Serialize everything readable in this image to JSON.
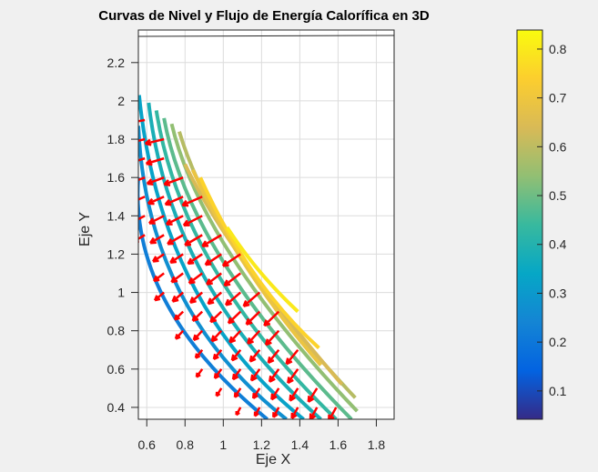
{
  "chart_data": {
    "type": "contour+quiver",
    "title": "Curvas de Nivel y Flujo de Energía Calorífica en 3D",
    "xlabel": "Eje X",
    "ylabel": "Eje Y",
    "xlim": [
      0.556,
      1.893
    ],
    "ylim": [
      0.338,
      2.37
    ],
    "grid": true,
    "xticks": [
      "0.6",
      "0.8",
      "1",
      "1.2",
      "1.4",
      "1.6",
      "1.8"
    ],
    "xtick_values": [
      0.6,
      0.8,
      1.0,
      1.2,
      1.4,
      1.6,
      1.8
    ],
    "yticks": [
      "0.4",
      "0.6",
      "0.8",
      "1",
      "1.2",
      "1.4",
      "1.6",
      "1.8",
      "2",
      "2.2"
    ],
    "ytick_values": [
      0.4,
      0.6,
      0.8,
      1.0,
      1.2,
      1.4,
      1.6,
      1.8,
      2.0,
      2.2
    ],
    "contours": [
      {
        "level": 0.22,
        "start": [
          0.556,
          1.6
        ],
        "mid": [
          0.7,
          0.95
        ],
        "end": [
          1.23,
          0.338
        ]
      },
      {
        "level": 0.27,
        "start": [
          0.556,
          1.87
        ],
        "mid": [
          0.77,
          1.01
        ],
        "end": [
          1.33,
          0.338
        ]
      },
      {
        "level": 0.33,
        "start": [
          0.56,
          2.03
        ],
        "mid": [
          0.83,
          1.06
        ],
        "end": [
          1.42,
          0.338
        ]
      },
      {
        "level": 0.38,
        "start": [
          0.61,
          1.99
        ],
        "mid": [
          0.89,
          1.1
        ],
        "end": [
          1.51,
          0.338
        ]
      },
      {
        "level": 0.43,
        "start": [
          0.65,
          1.95
        ],
        "mid": [
          0.95,
          1.13
        ],
        "end": [
          1.59,
          0.338
        ]
      },
      {
        "level": 0.48,
        "start": [
          0.69,
          1.91
        ],
        "mid": [
          1.0,
          1.16
        ],
        "end": [
          1.67,
          0.338
        ]
      },
      {
        "level": 0.54,
        "start": [
          0.73,
          1.88
        ],
        "mid": [
          1.05,
          1.18
        ],
        "end": [
          1.7,
          0.38
        ]
      },
      {
        "level": 0.59,
        "start": [
          0.77,
          1.84
        ],
        "mid": [
          1.09,
          1.19
        ],
        "end": [
          1.69,
          0.45
        ]
      },
      {
        "level": 0.64,
        "start": [
          0.8,
          1.67
        ],
        "mid": [
          1.11,
          1.16
        ],
        "end": [
          1.62,
          0.52
        ]
      },
      {
        "level": 0.69,
        "start": [
          0.84,
          1.64
        ],
        "mid": [
          1.13,
          1.12
        ],
        "end": [
          1.51,
          0.62
        ]
      },
      {
        "level": 0.75,
        "start": [
          0.88,
          1.6
        ],
        "mid": [
          1.16,
          1.1
        ],
        "end": [
          1.5,
          0.71
        ]
      },
      {
        "level": 0.8,
        "start": [
          1.02,
          1.34
        ],
        "mid": [
          1.19,
          1.11
        ],
        "end": [
          1.39,
          0.9
        ]
      }
    ],
    "quiver": {
      "color": "#ff0000",
      "x_start": 0.59,
      "x_step": 0.1,
      "rows": [
        {
          "y": 1.9,
          "cols": [
            0,
            0
          ]
        },
        {
          "y": 1.8,
          "cols": [
            0,
            1
          ]
        },
        {
          "y": 1.7,
          "cols": [
            0,
            1
          ]
        },
        {
          "y": 1.6,
          "cols": [
            0,
            2
          ]
        },
        {
          "y": 1.5,
          "cols": [
            0,
            3
          ]
        },
        {
          "y": 1.4,
          "cols": [
            0,
            3
          ]
        },
        {
          "y": 1.3,
          "cols": [
            0,
            4
          ]
        },
        {
          "y": 1.2,
          "cols": [
            1,
            5
          ]
        },
        {
          "y": 1.1,
          "cols": [
            1,
            5
          ]
        },
        {
          "y": 1.0,
          "cols": [
            1,
            6
          ]
        },
        {
          "y": 0.9,
          "cols": [
            2,
            7
          ]
        },
        {
          "y": 0.8,
          "cols": [
            2,
            7
          ]
        },
        {
          "y": 0.7,
          "cols": [
            3,
            8
          ]
        },
        {
          "y": 0.6,
          "cols": [
            3,
            8
          ]
        },
        {
          "y": 0.5,
          "cols": [
            4,
            9
          ]
        },
        {
          "y": 0.4,
          "cols": [
            5,
            10
          ]
        }
      ]
    },
    "colorbar": {
      "range": [
        0.042,
        0.839
      ],
      "ticks": [
        "0.1",
        "0.2",
        "0.3",
        "0.4",
        "0.5",
        "0.6",
        "0.7",
        "0.8"
      ],
      "tick_values": [
        0.1,
        0.2,
        0.3,
        0.4,
        0.5,
        0.6,
        0.7,
        0.8
      ],
      "colormap": "parula",
      "colormap_stops": [
        "#352a87",
        "#0363e1",
        "#1485d4",
        "#06a7c6",
        "#38b99e",
        "#92bf73",
        "#d9ba56",
        "#fcce2e",
        "#f9fb0e"
      ]
    }
  }
}
